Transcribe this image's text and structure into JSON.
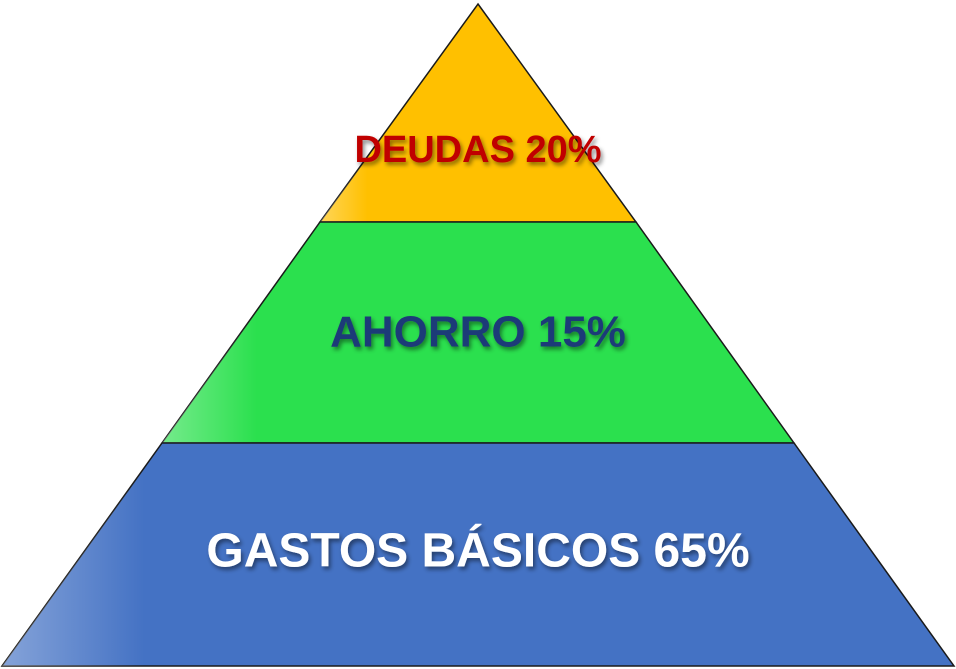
{
  "pyramid": {
    "tiers": [
      {
        "label": "DEUDAS 20%",
        "fill": "#FFC000",
        "text_color": "#C00000"
      },
      {
        "label": "AHORRO 15%",
        "fill": "#2BE04E",
        "text_color": "#1F3A78"
      },
      {
        "label": "GASTOS BÁSICOS 65%",
        "fill": "#4472C4",
        "text_color": "#FFFFFF"
      }
    ],
    "outline_color": "#1A1A1A"
  }
}
